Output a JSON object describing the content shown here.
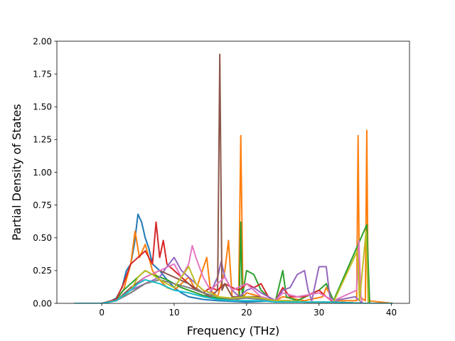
{
  "chart_data": {
    "type": "line",
    "title": "",
    "xlabel": "Frequency (THz)",
    "ylabel": "Partial Density of States",
    "xlim": [
      -6.2,
      42.5
    ],
    "ylim": [
      0,
      2.0
    ],
    "x_ticks": [
      0,
      10,
      20,
      30,
      40
    ],
    "x_tick_labels": [
      "0",
      "10",
      "20",
      "30",
      "40"
    ],
    "y_ticks": [
      0,
      0.25,
      0.5,
      0.75,
      1.0,
      1.25,
      1.5,
      1.75,
      2.0
    ],
    "y_tick_labels": [
      "0.00",
      "0.25",
      "0.50",
      "0.75",
      "1.00",
      "1.25",
      "1.50",
      "1.75",
      "2.00"
    ],
    "grid": false,
    "legend": "none",
    "series": [
      {
        "color": "#1f77b4",
        "points": [
          [
            -3.8,
            0
          ],
          [
            0,
            0
          ],
          [
            1,
            0.01
          ],
          [
            2,
            0.04
          ],
          [
            2.8,
            0.12
          ],
          [
            3.4,
            0.25
          ],
          [
            4,
            0.3
          ],
          [
            4.5,
            0.45
          ],
          [
            5,
            0.68
          ],
          [
            5.5,
            0.62
          ],
          [
            6,
            0.5
          ],
          [
            6.5,
            0.42
          ],
          [
            7,
            0.3
          ],
          [
            8,
            0.25
          ],
          [
            9,
            0.18
          ],
          [
            10,
            0.12
          ],
          [
            11,
            0.08
          ],
          [
            12,
            0.05
          ],
          [
            13,
            0.04
          ],
          [
            14,
            0.03
          ],
          [
            16,
            0.02
          ],
          [
            20,
            0.01
          ],
          [
            24,
            0.02
          ],
          [
            28,
            0.01
          ],
          [
            32,
            0.01
          ],
          [
            36,
            0
          ],
          [
            40.2,
            0
          ]
        ]
      },
      {
        "color": "#ff7f0e",
        "points": [
          [
            -3.8,
            0
          ],
          [
            0,
            0
          ],
          [
            1,
            0.01
          ],
          [
            2,
            0.03
          ],
          [
            3,
            0.1
          ],
          [
            4,
            0.3
          ],
          [
            4.6,
            0.55
          ],
          [
            5.2,
            0.35
          ],
          [
            6,
            0.45
          ],
          [
            7,
            0.25
          ],
          [
            8,
            0.18
          ],
          [
            9,
            0.12
          ],
          [
            10,
            0.1
          ],
          [
            11,
            0.15
          ],
          [
            12,
            0.2
          ],
          [
            13,
            0.1
          ],
          [
            14.5,
            0.35
          ],
          [
            15,
            0.1
          ],
          [
            16,
            0.05
          ],
          [
            17,
            0.25
          ],
          [
            17.5,
            0.48
          ],
          [
            18,
            0.05
          ],
          [
            18.9,
            0.02
          ],
          [
            19.2,
            1.28
          ],
          [
            19.5,
            0.05
          ],
          [
            20,
            0.08
          ],
          [
            22,
            0.05
          ],
          [
            24,
            0.02
          ],
          [
            25,
            0.05
          ],
          [
            28,
            0.02
          ],
          [
            30.5,
            0.05
          ],
          [
            31,
            0.12
          ],
          [
            32,
            0.02
          ],
          [
            35.2,
            0.02
          ],
          [
            35.4,
            1.28
          ],
          [
            35.6,
            0.05
          ],
          [
            36.4,
            0.02
          ],
          [
            36.6,
            1.32
          ],
          [
            36.8,
            0.02
          ],
          [
            40.2,
            0
          ]
        ]
      },
      {
        "color": "#2ca02c",
        "points": [
          [
            -3.8,
            0
          ],
          [
            0,
            0
          ],
          [
            2,
            0.03
          ],
          [
            3,
            0.1
          ],
          [
            4,
            0.15
          ],
          [
            5,
            0.2
          ],
          [
            6,
            0.25
          ],
          [
            7,
            0.22
          ],
          [
            8,
            0.2
          ],
          [
            9,
            0.18
          ],
          [
            10,
            0.15
          ],
          [
            11,
            0.12
          ],
          [
            12,
            0.1
          ],
          [
            13,
            0.08
          ],
          [
            14,
            0.06
          ],
          [
            15,
            0.05
          ],
          [
            16,
            0.04
          ],
          [
            18,
            0.03
          ],
          [
            19,
            0.05
          ],
          [
            19.2,
            0.62
          ],
          [
            19.4,
            0.05
          ],
          [
            20,
            0.25
          ],
          [
            21,
            0.22
          ],
          [
            22,
            0.1
          ],
          [
            23,
            0.05
          ],
          [
            24,
            0.02
          ],
          [
            25,
            0.25
          ],
          [
            25.5,
            0.05
          ],
          [
            27,
            0.02
          ],
          [
            30,
            0.1
          ],
          [
            31,
            0.15
          ],
          [
            32,
            0.02
          ],
          [
            36.6,
            0.6
          ],
          [
            37,
            0
          ],
          [
            40.2,
            0
          ]
        ]
      },
      {
        "color": "#d62728",
        "points": [
          [
            -3.8,
            0
          ],
          [
            0,
            0
          ],
          [
            2,
            0.03
          ],
          [
            3,
            0.15
          ],
          [
            4,
            0.3
          ],
          [
            5,
            0.35
          ],
          [
            6,
            0.4
          ],
          [
            7,
            0.3
          ],
          [
            7.5,
            0.62
          ],
          [
            8,
            0.35
          ],
          [
            8.5,
            0.48
          ],
          [
            9,
            0.3
          ],
          [
            10,
            0.25
          ],
          [
            11,
            0.2
          ],
          [
            12,
            0.15
          ],
          [
            13,
            0.1
          ],
          [
            14,
            0.08
          ],
          [
            15,
            0.12
          ],
          [
            16,
            0.1
          ],
          [
            17,
            0.15
          ],
          [
            18,
            0.12
          ],
          [
            19,
            0.1
          ],
          [
            20,
            0.15
          ],
          [
            21,
            0.12
          ],
          [
            22,
            0.15
          ],
          [
            23,
            0.05
          ],
          [
            24,
            0.02
          ],
          [
            25,
            0.12
          ],
          [
            26,
            0.05
          ],
          [
            28,
            0.05
          ],
          [
            30,
            0.1
          ],
          [
            31,
            0.05
          ],
          [
            32,
            0.01
          ],
          [
            36,
            0
          ],
          [
            40.2,
            0
          ]
        ]
      },
      {
        "color": "#9467bd",
        "points": [
          [
            -3.8,
            0
          ],
          [
            0,
            0
          ],
          [
            2,
            0.02
          ],
          [
            4,
            0.1
          ],
          [
            6,
            0.15
          ],
          [
            8,
            0.2
          ],
          [
            9,
            0.28
          ],
          [
            10,
            0.35
          ],
          [
            11,
            0.25
          ],
          [
            12,
            0.2
          ],
          [
            13,
            0.15
          ],
          [
            14,
            0.1
          ],
          [
            15,
            0.08
          ],
          [
            16,
            0.2
          ],
          [
            16.5,
            0.32
          ],
          [
            17,
            0.2
          ],
          [
            18,
            0.1
          ],
          [
            19,
            0.05
          ],
          [
            20,
            0.1
          ],
          [
            21,
            0.12
          ],
          [
            22,
            0.08
          ],
          [
            23,
            0.05
          ],
          [
            24,
            0.02
          ],
          [
            25,
            0.1
          ],
          [
            26,
            0.12
          ],
          [
            27,
            0.22
          ],
          [
            28,
            0.25
          ],
          [
            28.5,
            0.1
          ],
          [
            29,
            0.02
          ],
          [
            30,
            0.28
          ],
          [
            31,
            0.28
          ],
          [
            31.5,
            0.05
          ],
          [
            32,
            0.02
          ],
          [
            35,
            0.05
          ],
          [
            36,
            0
          ],
          [
            40.2,
            0
          ]
        ]
      },
      {
        "color": "#8c564b",
        "points": [
          [
            -3.8,
            0
          ],
          [
            0,
            0
          ],
          [
            2,
            0.02
          ],
          [
            4,
            0.12
          ],
          [
            6,
            0.2
          ],
          [
            8,
            0.25
          ],
          [
            10,
            0.2
          ],
          [
            12,
            0.15
          ],
          [
            14,
            0.08
          ],
          [
            15,
            0.05
          ],
          [
            16,
            0.1
          ],
          [
            16.3,
            1.9
          ],
          [
            16.6,
            0.1
          ],
          [
            17,
            0.15
          ],
          [
            18,
            0.05
          ],
          [
            20,
            0.05
          ],
          [
            22,
            0.05
          ],
          [
            24,
            0.02
          ],
          [
            26,
            0.02
          ],
          [
            28,
            0.01
          ],
          [
            32,
            0.01
          ],
          [
            36,
            0
          ],
          [
            40.2,
            0
          ]
        ]
      },
      {
        "color": "#e377c2",
        "points": [
          [
            -3.8,
            0
          ],
          [
            0,
            0
          ],
          [
            2,
            0.02
          ],
          [
            4,
            0.1
          ],
          [
            6,
            0.2
          ],
          [
            8,
            0.25
          ],
          [
            10,
            0.3
          ],
          [
            11,
            0.2
          ],
          [
            12,
            0.3
          ],
          [
            12.5,
            0.44
          ],
          [
            13,
            0.35
          ],
          [
            14,
            0.2
          ],
          [
            15,
            0.1
          ],
          [
            16,
            0.15
          ],
          [
            17,
            0.2
          ],
          [
            18,
            0.1
          ],
          [
            20,
            0.15
          ],
          [
            21,
            0.1
          ],
          [
            22,
            0.05
          ],
          [
            24,
            0.02
          ],
          [
            25,
            0.08
          ],
          [
            27,
            0.05
          ],
          [
            30,
            0.08
          ],
          [
            32,
            0.02
          ],
          [
            35.2,
            0.1
          ],
          [
            35.5,
            0.48
          ],
          [
            35.8,
            0.05
          ],
          [
            36,
            0
          ],
          [
            40.2,
            0
          ]
        ]
      },
      {
        "color": "#7f7f7f",
        "points": [
          [
            -3.8,
            0
          ],
          [
            0,
            0
          ],
          [
            2,
            0.02
          ],
          [
            4,
            0.08
          ],
          [
            6,
            0.15
          ],
          [
            8,
            0.18
          ],
          [
            10,
            0.15
          ],
          [
            12,
            0.12
          ],
          [
            14,
            0.08
          ],
          [
            16,
            0.05
          ],
          [
            18,
            0.03
          ],
          [
            20,
            0.04
          ],
          [
            22,
            0.03
          ],
          [
            24,
            0.02
          ],
          [
            26,
            0.02
          ],
          [
            28,
            0.01
          ],
          [
            32,
            0.01
          ],
          [
            36,
            0
          ],
          [
            40.2,
            0
          ]
        ]
      },
      {
        "color": "#bcbd22",
        "points": [
          [
            -3.8,
            0
          ],
          [
            0,
            0
          ],
          [
            2,
            0.02
          ],
          [
            4,
            0.1
          ],
          [
            5,
            0.2
          ],
          [
            6,
            0.25
          ],
          [
            7,
            0.22
          ],
          [
            8,
            0.18
          ],
          [
            9,
            0.15
          ],
          [
            10,
            0.12
          ],
          [
            11,
            0.2
          ],
          [
            12,
            0.28
          ],
          [
            13,
            0.15
          ],
          [
            14,
            0.1
          ],
          [
            15,
            0.08
          ],
          [
            16,
            0.05
          ],
          [
            18,
            0.04
          ],
          [
            20,
            0.05
          ],
          [
            22,
            0.04
          ],
          [
            24,
            0.02
          ],
          [
            26,
            0.02
          ],
          [
            28,
            0.01
          ],
          [
            32,
            0.01
          ],
          [
            35.3,
            0.4
          ],
          [
            35.6,
            0.02
          ],
          [
            36.5,
            0.55
          ],
          [
            36.8,
            0
          ],
          [
            40.2,
            0
          ]
        ]
      },
      {
        "color": "#17becf",
        "points": [
          [
            -3.8,
            0
          ],
          [
            0,
            0
          ],
          [
            2,
            0.02
          ],
          [
            4,
            0.1
          ],
          [
            5,
            0.15
          ],
          [
            6,
            0.18
          ],
          [
            8,
            0.15
          ],
          [
            10,
            0.1
          ],
          [
            12,
            0.08
          ],
          [
            14,
            0.05
          ],
          [
            16,
            0.03
          ],
          [
            18,
            0.02
          ],
          [
            20,
            0.02
          ],
          [
            22,
            0.02
          ],
          [
            24,
            0.01
          ],
          [
            28,
            0.01
          ],
          [
            32,
            0.01
          ],
          [
            36,
            0
          ],
          [
            40.2,
            0
          ]
        ]
      }
    ]
  }
}
